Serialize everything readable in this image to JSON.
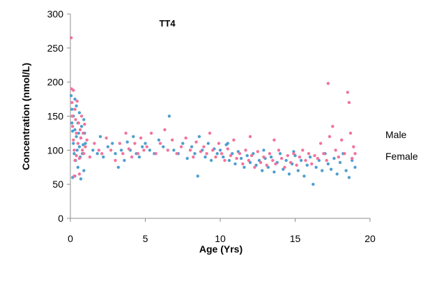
{
  "chart_data": {
    "type": "scatter",
    "title": "TT4",
    "xlabel": "Age (Yrs)",
    "ylabel": "Concentration (nmol/L)",
    "xlim": [
      0,
      20
    ],
    "ylim": [
      0,
      300
    ],
    "x_ticks": [
      "0",
      "5",
      "10",
      "15",
      "20"
    ],
    "y_ticks": [
      "0",
      "50",
      "100",
      "150",
      "200",
      "250",
      "300"
    ],
    "grid": false,
    "legend_placement": "right",
    "series": [
      {
        "name": "Male",
        "color": "#4f9fd0",
        "points": [
          [
            0.05,
            180
          ],
          [
            0.1,
            160
          ],
          [
            0.1,
            140
          ],
          [
            0.15,
            128
          ],
          [
            0.2,
            150
          ],
          [
            0.2,
            110
          ],
          [
            0.25,
            95
          ],
          [
            0.3,
            175
          ],
          [
            0.3,
            130
          ],
          [
            0.35,
            85
          ],
          [
            0.4,
            120
          ],
          [
            0.4,
            165
          ],
          [
            0.45,
            100
          ],
          [
            0.5,
            140
          ],
          [
            0.5,
            75
          ],
          [
            0.55,
            125
          ],
          [
            0.6,
            105
          ],
          [
            0.6,
            155
          ],
          [
            0.65,
            90
          ],
          [
            0.7,
            118
          ],
          [
            0.75,
            135
          ],
          [
            0.8,
            95
          ],
          [
            0.85,
            108
          ],
          [
            0.9,
            70
          ],
          [
            0.95,
            125
          ],
          [
            1.0,
            110
          ],
          [
            0.15,
            60
          ],
          [
            0.3,
            62
          ],
          [
            0.7,
            58
          ],
          [
            0.9,
            145
          ],
          [
            1.5,
            100
          ],
          [
            1.8,
            95
          ],
          [
            2.0,
            120
          ],
          [
            2.2,
            90
          ],
          [
            2.5,
            105
          ],
          [
            2.8,
            110
          ],
          [
            3.0,
            95
          ],
          [
            3.2,
            75
          ],
          [
            3.4,
            100
          ],
          [
            3.6,
            85
          ],
          [
            3.8,
            112
          ],
          [
            4.0,
            100
          ],
          [
            4.2,
            120
          ],
          [
            4.4,
            95
          ],
          [
            4.6,
            90
          ],
          [
            4.8,
            105
          ],
          [
            5.0,
            110
          ],
          [
            5.3,
            100
          ],
          [
            5.6,
            95
          ],
          [
            5.9,
            115
          ],
          [
            6.2,
            105
          ],
          [
            6.6,
            150
          ],
          [
            6.9,
            100
          ],
          [
            7.2,
            95
          ],
          [
            7.5,
            110
          ],
          [
            7.8,
            88
          ],
          [
            8.1,
            105
          ],
          [
            8.3,
            95
          ],
          [
            8.6,
            120
          ],
          [
            8.8,
            100
          ],
          [
            9.0,
            90
          ],
          [
            9.2,
            110
          ],
          [
            9.4,
            85
          ],
          [
            9.6,
            102
          ],
          [
            9.8,
            95
          ],
          [
            10.0,
            100
          ],
          [
            10.2,
            90
          ],
          [
            10.4,
            108
          ],
          [
            10.6,
            85
          ],
          [
            10.8,
            95
          ],
          [
            11.0,
            80
          ],
          [
            11.2,
            98
          ],
          [
            11.4,
            88
          ],
          [
            11.6,
            75
          ],
          [
            11.8,
            92
          ],
          [
            12.0,
            82
          ],
          [
            12.2,
            95
          ],
          [
            12.4,
            78
          ],
          [
            12.6,
            85
          ],
          [
            12.8,
            70
          ],
          [
            13.0,
            88
          ],
          [
            13.2,
            75
          ],
          [
            13.4,
            90
          ],
          [
            13.6,
            68
          ],
          [
            13.8,
            82
          ],
          [
            14.0,
            95
          ],
          [
            14.2,
            72
          ],
          [
            14.4,
            85
          ],
          [
            14.6,
            65
          ],
          [
            14.8,
            80
          ],
          [
            15.0,
            92
          ],
          [
            15.2,
            70
          ],
          [
            15.4,
            85
          ],
          [
            15.6,
            62
          ],
          [
            15.8,
            78
          ],
          [
            16.0,
            90
          ],
          [
            16.2,
            50
          ],
          [
            16.4,
            75
          ],
          [
            16.6,
            85
          ],
          [
            16.8,
            70
          ],
          [
            17.0,
            95
          ],
          [
            17.2,
            80
          ],
          [
            17.4,
            72
          ],
          [
            17.6,
            88
          ],
          [
            17.8,
            65
          ],
          [
            18.0,
            82
          ],
          [
            18.2,
            95
          ],
          [
            18.4,
            70
          ],
          [
            18.6,
            60
          ],
          [
            18.8,
            85
          ],
          [
            19.0,
            75
          ],
          [
            8.5,
            62
          ],
          [
            10.5,
            110
          ],
          [
            12.9,
            100
          ],
          [
            14.9,
            98
          ]
        ]
      },
      {
        "name": "Female",
        "color": "#f2739c",
        "points": [
          [
            0.05,
            265
          ],
          [
            0.08,
            190
          ],
          [
            0.1,
            170
          ],
          [
            0.12,
            150
          ],
          [
            0.15,
            135
          ],
          [
            0.2,
            188
          ],
          [
            0.2,
            115
          ],
          [
            0.25,
            100
          ],
          [
            0.3,
            160
          ],
          [
            0.3,
            85
          ],
          [
            0.35,
            145
          ],
          [
            0.4,
            125
          ],
          [
            0.4,
            92
          ],
          [
            0.45,
            172
          ],
          [
            0.5,
            110
          ],
          [
            0.55,
            140
          ],
          [
            0.6,
            88
          ],
          [
            0.65,
            130
          ],
          [
            0.7,
            118
          ],
          [
            0.75,
            150
          ],
          [
            0.8,
            100
          ],
          [
            0.85,
            125
          ],
          [
            0.9,
            95
          ],
          [
            0.95,
            138
          ],
          [
            1.0,
            105
          ],
          [
            0.25,
            62
          ],
          [
            0.6,
            65
          ],
          [
            1.1,
            115
          ],
          [
            1.3,
            90
          ],
          [
            1.6,
            110
          ],
          [
            1.9,
            100
          ],
          [
            2.1,
            95
          ],
          [
            2.4,
            118
          ],
          [
            2.7,
            100
          ],
          [
            3.0,
            85
          ],
          [
            3.3,
            110
          ],
          [
            3.5,
            95
          ],
          [
            3.7,
            125
          ],
          [
            3.9,
            102
          ],
          [
            4.1,
            90
          ],
          [
            4.3,
            110
          ],
          [
            4.5,
            95
          ],
          [
            4.7,
            118
          ],
          [
            4.9,
            100
          ],
          [
            5.1,
            105
          ],
          [
            5.4,
            125
          ],
          [
            5.7,
            95
          ],
          [
            6.0,
            110
          ],
          [
            6.3,
            130
          ],
          [
            6.5,
            100
          ],
          [
            6.8,
            115
          ],
          [
            7.1,
            95
          ],
          [
            7.4,
            105
          ],
          [
            7.7,
            118
          ],
          [
            8.0,
            100
          ],
          [
            8.2,
            90
          ],
          [
            8.4,
            112
          ],
          [
            8.7,
            98
          ],
          [
            8.9,
            105
          ],
          [
            9.1,
            95
          ],
          [
            9.3,
            125
          ],
          [
            9.5,
            100
          ],
          [
            9.7,
            90
          ],
          [
            9.9,
            110
          ],
          [
            10.1,
            95
          ],
          [
            10.3,
            85
          ],
          [
            10.5,
            102
          ],
          [
            10.7,
            92
          ],
          [
            10.9,
            115
          ],
          [
            11.1,
            88
          ],
          [
            11.3,
            95
          ],
          [
            11.5,
            80
          ],
          [
            11.7,
            100
          ],
          [
            11.9,
            85
          ],
          [
            12.1,
            92
          ],
          [
            12.3,
            75
          ],
          [
            12.5,
            98
          ],
          [
            12.7,
            82
          ],
          [
            12.9,
            90
          ],
          [
            13.1,
            78
          ],
          [
            13.3,
            95
          ],
          [
            13.5,
            85
          ],
          [
            13.7,
            80
          ],
          [
            13.9,
            100
          ],
          [
            14.1,
            88
          ],
          [
            14.3,
            75
          ],
          [
            14.5,
            92
          ],
          [
            14.7,
            82
          ],
          [
            14.9,
            95
          ],
          [
            15.1,
            78
          ],
          [
            15.3,
            90
          ],
          [
            15.5,
            100
          ],
          [
            15.7,
            85
          ],
          [
            15.9,
            95
          ],
          [
            16.1,
            80
          ],
          [
            16.3,
            92
          ],
          [
            16.5,
            88
          ],
          [
            16.7,
            110
          ],
          [
            16.9,
            95
          ],
          [
            17.1,
            85
          ],
          [
            17.2,
            198
          ],
          [
            17.3,
            120
          ],
          [
            17.5,
            135
          ],
          [
            17.7,
            100
          ],
          [
            17.9,
            90
          ],
          [
            18.1,
            115
          ],
          [
            18.3,
            95
          ],
          [
            18.5,
            185
          ],
          [
            18.6,
            170
          ],
          [
            18.7,
            125
          ],
          [
            18.8,
            88
          ],
          [
            18.9,
            105
          ],
          [
            19.0,
            95
          ],
          [
            12.0,
            120
          ],
          [
            13.6,
            115
          ]
        ]
      }
    ]
  }
}
